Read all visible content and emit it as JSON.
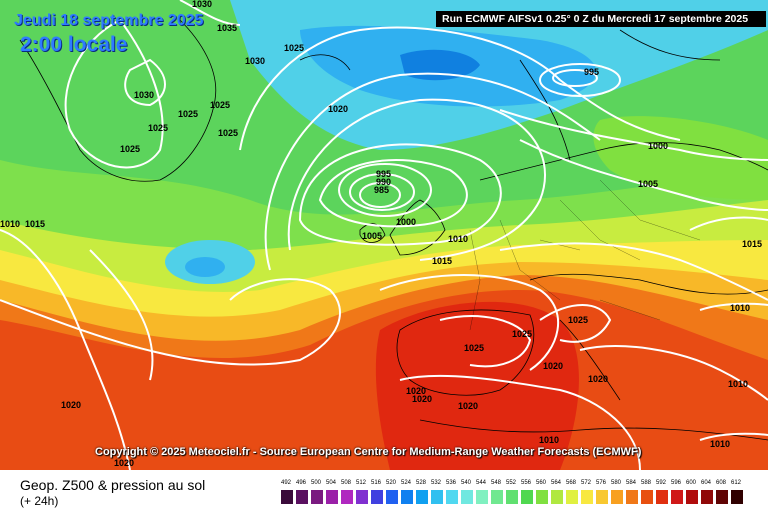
{
  "header": {
    "date": "Jeudi 18 septembre 2025",
    "time": "2:00 locale",
    "run": "Run ECMWF AIFSv1 0.25° 0 Z du Mercredi 17 septembre 2025"
  },
  "copyright": "Copyright © 2025 Meteociel.fr - Source European Centre for Medium-Range Weather Forecasts (ECMWF)",
  "footer": {
    "title": "Geop. Z500 & pression au sol",
    "subtitle": "(+ 24h)"
  },
  "scale": {
    "labels": [
      "492",
      "496",
      "500",
      "504",
      "508",
      "512",
      "516",
      "520",
      "524",
      "528",
      "532",
      "536",
      "540",
      "544",
      "548",
      "552",
      "556",
      "560",
      "564",
      "568",
      "572",
      "576",
      "580",
      "584",
      "588",
      "592",
      "596",
      "600",
      "604",
      "608",
      "612"
    ],
    "colors": [
      "#3a0a3a",
      "#5a1060",
      "#7a1a80",
      "#9a20a8",
      "#b028c0",
      "#8030d0",
      "#4040e0",
      "#2060f0",
      "#1080f0",
      "#10a0f0",
      "#30c0f0",
      "#50d8f0",
      "#70e8e0",
      "#80f0c0",
      "#70e890",
      "#60e070",
      "#50d850",
      "#80e040",
      "#b0e840",
      "#e0f040",
      "#f8e840",
      "#f8c830",
      "#f8a020",
      "#f07818",
      "#e85010",
      "#e03010",
      "#d01818",
      "#b00c0c",
      "#900808",
      "#600404",
      "#300000"
    ]
  },
  "isobars": [
    {
      "label": "1030",
      "pos": "top-left"
    },
    {
      "label": "1035",
      "pos": "top-left"
    },
    {
      "label": "1030",
      "pos": "greenland"
    },
    {
      "label": "1030",
      "pos": "greenland"
    },
    {
      "label": "1025",
      "pos": "greenland"
    },
    {
      "label": "1025",
      "pos": "greenland"
    },
    {
      "label": "1025",
      "pos": "greenland"
    },
    {
      "label": "1025",
      "pos": "greenland"
    },
    {
      "label": "1025",
      "pos": "greenland"
    },
    {
      "label": "1025",
      "pos": "north"
    },
    {
      "label": "1020",
      "pos": "north-atlantic"
    },
    {
      "label": "995",
      "pos": "scandinavia"
    },
    {
      "label": "995",
      "pos": "low"
    },
    {
      "label": "990",
      "pos": "low"
    },
    {
      "label": "985",
      "pos": "low"
    },
    {
      "label": "1000",
      "pos": "low"
    },
    {
      "label": "1005",
      "pos": "low"
    },
    {
      "label": "1010",
      "pos": "uk"
    },
    {
      "label": "1015",
      "pos": "uk"
    },
    {
      "label": "1000",
      "pos": "scandinavia"
    },
    {
      "label": "1005",
      "pos": "scandinavia"
    },
    {
      "label": "1015",
      "pos": "east"
    },
    {
      "label": "1010",
      "pos": "east"
    },
    {
      "label": "1015",
      "pos": "west"
    },
    {
      "label": "1010",
      "pos": "west"
    },
    {
      "label": "1025",
      "pos": "france"
    },
    {
      "label": "1025",
      "pos": "alps"
    },
    {
      "label": "1025",
      "pos": "iberia"
    },
    {
      "label": "1020",
      "pos": "italy"
    },
    {
      "label": "1020",
      "pos": "italy"
    },
    {
      "label": "1020",
      "pos": "iberia"
    },
    {
      "label": "1020",
      "pos": "iberia"
    },
    {
      "label": "1020",
      "pos": "africa"
    },
    {
      "label": "1020",
      "pos": "atlantic"
    },
    {
      "label": "1020",
      "pos": "atlantic"
    },
    {
      "label": "1010",
      "pos": "east"
    },
    {
      "label": "1010",
      "pos": "east"
    },
    {
      "label": "1010",
      "pos": "southeast"
    }
  ]
}
